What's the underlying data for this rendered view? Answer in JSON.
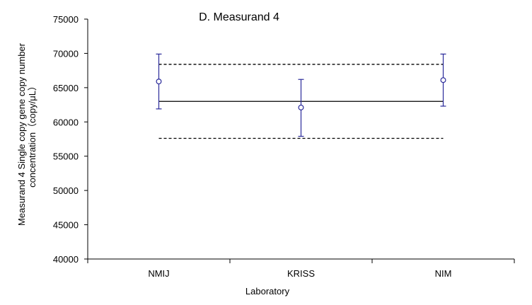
{
  "chart_data": {
    "type": "scatter",
    "title": "D. Measurand 4",
    "xlabel": "Laboratory",
    "ylabel_line1": "Measurand 4 Single copy gene copy number",
    "ylabel_line2": "concentration（copy/μL）",
    "categories": [
      "NMIJ",
      "KRISS",
      "NIM"
    ],
    "ylim": [
      40000,
      75000
    ],
    "yticks": [
      40000,
      45000,
      50000,
      55000,
      60000,
      65000,
      70000,
      75000
    ],
    "ytick_labels": [
      "40000",
      "45000",
      "50000",
      "55000",
      "60000",
      "65000",
      "70000",
      "75000"
    ],
    "values": [
      65900,
      62100,
      66100
    ],
    "error_low": [
      61900,
      57900,
      62300
    ],
    "error_high": [
      69900,
      66200,
      69900
    ],
    "reference_value": 63000,
    "reference_lower": 57600,
    "reference_upper": 68400,
    "grid": false,
    "legend": "none",
    "colors": {
      "points": "#2a2a9a",
      "reference_line": "#000000",
      "axes": "#000000"
    }
  }
}
